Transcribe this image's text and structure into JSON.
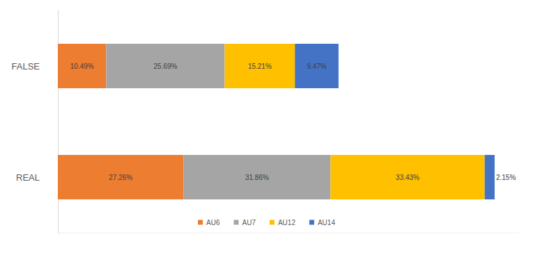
{
  "chart_data": {
    "type": "bar",
    "orientation": "horizontal",
    "stacked": true,
    "categories": [
      "FALSE",
      "REAL"
    ],
    "series": [
      {
        "name": "AU6",
        "color": "#ed7d31",
        "values": [
          10.49,
          27.26
        ],
        "value_labels": [
          "10.49%",
          "27.26%"
        ]
      },
      {
        "name": "AU7",
        "color": "#a5a5a5",
        "values": [
          25.69,
          31.86
        ],
        "value_labels": [
          "25.69%",
          "31.86%"
        ]
      },
      {
        "name": "AU12",
        "color": "#ffc000",
        "values": [
          15.21,
          33.43
        ],
        "value_labels": [
          "15.21%",
          "33.43%"
        ]
      },
      {
        "name": "AU14",
        "color": "#4472c4",
        "values": [
          9.47,
          2.15
        ],
        "value_labels": [
          "9.47%",
          "2.15%"
        ]
      }
    ],
    "xlim": [
      0,
      100
    ],
    "data_labels": true,
    "legend": "bottom",
    "grid": false,
    "tick_labels": "y"
  }
}
